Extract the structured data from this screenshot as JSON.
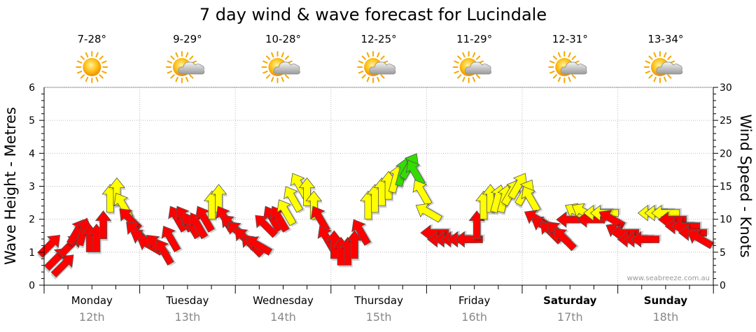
{
  "chart_data": {
    "type": "line",
    "title": "7 day wind & wave forecast for Lucindale",
    "ylabel_left": "Wave Height - Metres",
    "ylabel_right": "Wind Speed - Knots",
    "ylim_left": [
      0,
      6
    ],
    "ylim_right": [
      0,
      30
    ],
    "yticks_left": [
      "0",
      "1",
      "2",
      "3",
      "4",
      "5",
      "6"
    ],
    "yticks_right": [
      "0",
      "5",
      "10",
      "15",
      "20",
      "25",
      "30"
    ],
    "days": [
      {
        "name": "Monday",
        "date": "12th",
        "temp": "7-28°",
        "weather": "sunny",
        "bold": false
      },
      {
        "name": "Tuesday",
        "date": "13th",
        "temp": "9-29°",
        "weather": "partly-cloudy",
        "bold": false
      },
      {
        "name": "Wednesday",
        "date": "14th",
        "temp": "10-28°",
        "weather": "partly-cloudy",
        "bold": false
      },
      {
        "name": "Thursday",
        "date": "15th",
        "temp": "12-25°",
        "weather": "partly-cloudy",
        "bold": false
      },
      {
        "name": "Friday",
        "date": "16th",
        "temp": "11-29°",
        "weather": "partly-cloudy",
        "bold": false
      },
      {
        "name": "Saturday",
        "date": "17th",
        "temp": "12-31°",
        "weather": "partly-cloudy",
        "bold": true
      },
      {
        "name": "Sunday",
        "date": "18th",
        "temp": "13-34°",
        "weather": "partly-cloudy",
        "bold": true
      }
    ],
    "colors": {
      "low": "#ff0000",
      "mid": "#ffff00",
      "high": "#33dd00"
    },
    "wind_knots": [
      7,
      5,
      4,
      7,
      9,
      9,
      8,
      8,
      10,
      14,
      15,
      13,
      11,
      9,
      8,
      7,
      7,
      6,
      8,
      11,
      11,
      10,
      10,
      11,
      13,
      14,
      11,
      10,
      9,
      8,
      7,
      7,
      10,
      11,
      11,
      12,
      14,
      16,
      15,
      13,
      11,
      8,
      7,
      6,
      6,
      7,
      9,
      13,
      14,
      15,
      16,
      17,
      18,
      19,
      18,
      15,
      12,
      9,
      8,
      8,
      8,
      8,
      8,
      10,
      13,
      14,
      14,
      14,
      15,
      16,
      15,
      14,
      11,
      10,
      9,
      9,
      8,
      11,
      12,
      12,
      11,
      12,
      12,
      11,
      9,
      9,
      8,
      8,
      8,
      12,
      12,
      12,
      11,
      10,
      10,
      9,
      8
    ],
    "wind_dir_deg": [
      45,
      45,
      45,
      45,
      30,
      15,
      0,
      0,
      0,
      0,
      0,
      330,
      315,
      315,
      300,
      300,
      315,
      330,
      330,
      330,
      330,
      330,
      330,
      330,
      0,
      0,
      330,
      315,
      315,
      315,
      315,
      300,
      315,
      330,
      330,
      330,
      330,
      330,
      0,
      0,
      330,
      330,
      0,
      0,
      0,
      0,
      330,
      0,
      0,
      0,
      0,
      15,
      15,
      30,
      330,
      330,
      300,
      270,
      270,
      270,
      270,
      270,
      270,
      0,
      0,
      0,
      15,
      15,
      30,
      30,
      30,
      330,
      300,
      300,
      315,
      315,
      315,
      270,
      300,
      300,
      270,
      270,
      270,
      300,
      300,
      270,
      270,
      270,
      270,
      270,
      270,
      270,
      270,
      270,
      270,
      270,
      300
    ]
  },
  "credit": "www.seabreeze.com.au"
}
